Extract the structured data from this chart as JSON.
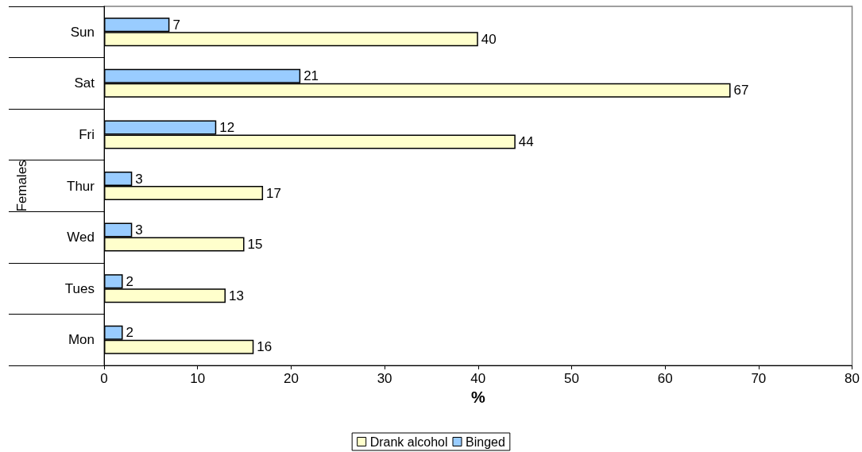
{
  "chart_data": {
    "type": "bar",
    "orientation": "horizontal",
    "categories": [
      "Sun",
      "Sat",
      "Fri",
      "Thur",
      "Wed",
      "Tues",
      "Mon"
    ],
    "series": [
      {
        "name": "Drank alcohol",
        "color": "#ffffcc",
        "values": [
          40,
          67,
          44,
          17,
          15,
          13,
          16
        ]
      },
      {
        "name": "Binged",
        "color": "#99ccff",
        "values": [
          7,
          21,
          12,
          3,
          3,
          2,
          2
        ]
      }
    ],
    "xlabel": "%",
    "ylabel": "Females",
    "xlim": [
      0,
      80
    ],
    "xticks": [
      0,
      10,
      20,
      30,
      40,
      50,
      60,
      70,
      80
    ],
    "grid": false,
    "legend": "bottom",
    "data_labels": true
  }
}
